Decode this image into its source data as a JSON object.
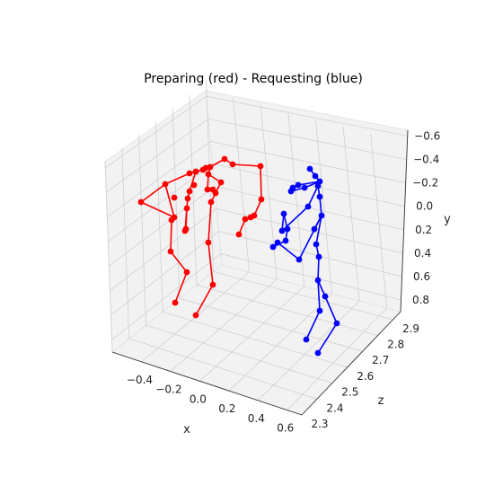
{
  "chart_data": {
    "type": "scatter",
    "projection": "3d",
    "title": "Preparing (red) - Requesting (blue)",
    "xlabel": "x",
    "ylabel": "y",
    "zlabel": "z",
    "xlim": [
      -0.6,
      0.7
    ],
    "ylim": [
      -0.65,
      0.9
    ],
    "y_inverted": true,
    "zlim": [
      2.3,
      2.95
    ],
    "xticks": [
      "−0.4",
      "−0.2",
      "0.0",
      "0.2",
      "0.4",
      "0.6"
    ],
    "xtick_values": [
      -0.4,
      -0.2,
      0.0,
      0.2,
      0.4,
      0.6
    ],
    "yticks": [
      "−0.6",
      "−0.4",
      "−0.2",
      "0.0",
      "0.2",
      "0.4",
      "0.6",
      "0.8"
    ],
    "ytick_values": [
      -0.6,
      -0.4,
      -0.2,
      0.0,
      0.2,
      0.4,
      0.6,
      0.8
    ],
    "zticks": [
      "2.3",
      "2.4",
      "2.5",
      "2.6",
      "2.7",
      "2.8",
      "2.9"
    ],
    "ztick_values": [
      2.3,
      2.4,
      2.5,
      2.6,
      2.7,
      2.8,
      2.9
    ],
    "grid": true,
    "series": [
      {
        "color": "#ff0000",
        "points": [
          [
            157,
            225
          ],
          [
            184,
            205
          ],
          [
            194,
            220
          ],
          [
            211,
            193
          ],
          [
            216,
            206
          ],
          [
            226,
            189
          ],
          [
            229,
            187
          ],
          [
            234,
            186
          ],
          [
            250,
            177
          ],
          [
            259,
            183
          ],
          [
            290,
            185
          ],
          [
            291,
            222
          ],
          [
            283,
            240
          ],
          [
            279,
            242
          ],
          [
            273,
            244
          ],
          [
            266,
            261
          ],
          [
            218,
            191
          ],
          [
            211,
            213
          ],
          [
            209,
            221
          ],
          [
            208,
            232
          ],
          [
            207,
            255
          ],
          [
            206,
            257
          ],
          [
            194,
            242
          ],
          [
            191,
            245
          ],
          [
            190,
            280
          ],
          [
            208,
            303
          ],
          [
            195,
            337
          ],
          [
            232,
            194
          ],
          [
            231,
            211
          ],
          [
            237,
            211
          ],
          [
            246,
            203
          ],
          [
            240,
            215
          ],
          [
            235,
            225
          ],
          [
            232,
            270
          ],
          [
            237,
            317
          ],
          [
            218,
            351
          ]
        ],
        "segments": [
          [
            0,
            1
          ],
          [
            1,
            3
          ],
          [
            3,
            5
          ],
          [
            5,
            6
          ],
          [
            6,
            7
          ],
          [
            7,
            8
          ],
          [
            8,
            9
          ],
          [
            9,
            10
          ],
          [
            10,
            11
          ],
          [
            11,
            12
          ],
          [
            12,
            13
          ],
          [
            13,
            14
          ],
          [
            14,
            15
          ],
          [
            5,
            16
          ],
          [
            16,
            17
          ],
          [
            17,
            18
          ],
          [
            18,
            19
          ],
          [
            19,
            20
          ],
          [
            20,
            21
          ],
          [
            1,
            22
          ],
          [
            22,
            23
          ],
          [
            23,
            24
          ],
          [
            24,
            25
          ],
          [
            25,
            26
          ],
          [
            7,
            27
          ],
          [
            27,
            28
          ],
          [
            28,
            29
          ],
          [
            27,
            30
          ],
          [
            30,
            31
          ],
          [
            31,
            32
          ],
          [
            32,
            33
          ],
          [
            33,
            34
          ],
          [
            34,
            35
          ],
          [
            0,
            22
          ],
          [
            19,
            21
          ]
        ]
      },
      {
        "color": "#0000ff",
        "points": [
          [
            345,
            188
          ],
          [
            351,
            196
          ],
          [
            356,
            202
          ],
          [
            354,
            207
          ],
          [
            356,
            219
          ],
          [
            358,
            240
          ],
          [
            350,
            255
          ],
          [
            343,
            230
          ],
          [
            332,
            206
          ],
          [
            326,
            209
          ],
          [
            324,
            213
          ],
          [
            339,
            209
          ],
          [
            316,
            238
          ],
          [
            320,
            255
          ],
          [
            318,
            268
          ],
          [
            304,
            275
          ],
          [
            309,
            270
          ],
          [
            333,
            289
          ],
          [
            352,
            272
          ],
          [
            355,
            286
          ],
          [
            354,
            312
          ],
          [
            362,
            330
          ],
          [
            375,
            360
          ],
          [
            356,
            346
          ],
          [
            341,
            378
          ],
          [
            354,
            393
          ],
          [
            314,
            257
          ]
        ],
        "segments": [
          [
            0,
            1
          ],
          [
            1,
            2
          ],
          [
            2,
            3
          ],
          [
            3,
            4
          ],
          [
            4,
            5
          ],
          [
            5,
            6
          ],
          [
            2,
            8
          ],
          [
            8,
            9
          ],
          [
            9,
            10
          ],
          [
            10,
            11
          ],
          [
            11,
            2
          ],
          [
            3,
            7
          ],
          [
            7,
            26
          ],
          [
            26,
            13
          ],
          [
            13,
            14
          ],
          [
            14,
            15
          ],
          [
            15,
            16
          ],
          [
            16,
            17
          ],
          [
            17,
            5
          ],
          [
            5,
            18
          ],
          [
            18,
            19
          ],
          [
            19,
            20
          ],
          [
            20,
            21
          ],
          [
            21,
            22
          ],
          [
            22,
            25
          ],
          [
            20,
            23
          ],
          [
            23,
            24
          ],
          [
            12,
            13
          ],
          [
            12,
            26
          ]
        ]
      }
    ]
  }
}
